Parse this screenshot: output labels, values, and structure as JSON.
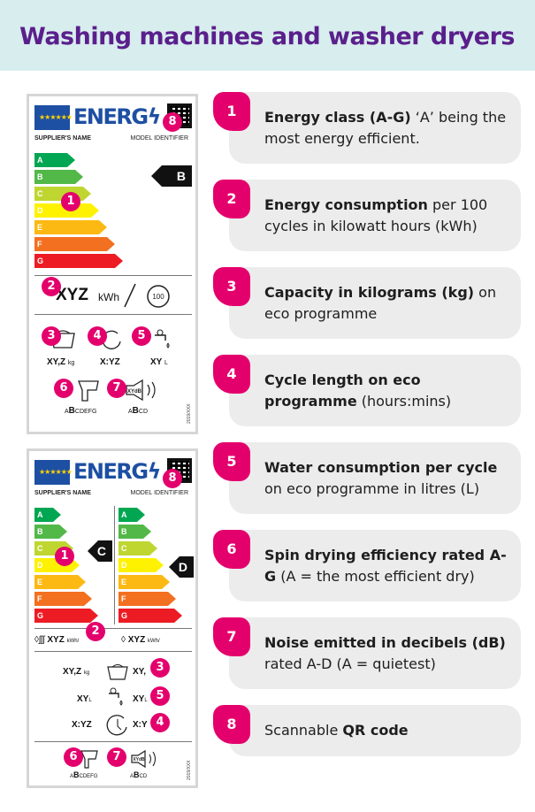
{
  "header": {
    "title": "Washing machines and washer dryers"
  },
  "colors": {
    "brand_purple": "#5a1f8c",
    "accent_pink": "#e4006c",
    "header_bg": "#d8eded",
    "card_bg": "#ececed",
    "eu_blue": "#1d4fa3"
  },
  "energy_scale": [
    {
      "letter": "A",
      "color": "#00a651"
    },
    {
      "letter": "B",
      "color": "#52b848"
    },
    {
      "letter": "C",
      "color": "#bfd630"
    },
    {
      "letter": "D",
      "color": "#fff200"
    },
    {
      "letter": "E",
      "color": "#fdb913"
    },
    {
      "letter": "F",
      "color": "#f37021"
    },
    {
      "letter": "G",
      "color": "#ed1c24"
    }
  ],
  "label_common": {
    "eu_stars": "★★★★★★",
    "energy_title": "ENERG",
    "lightning": "ϟ",
    "supplier": "SUPPLIER'S NAME",
    "model": "MODEL IDENTIFIER",
    "regulation": "2019/XXX"
  },
  "label_washer": {
    "class": "B",
    "consumption_value": "XYZ",
    "consumption_unit": "kWh",
    "cycles": "100",
    "capacity": "XY,Z",
    "capacity_unit": "kg",
    "duration": "X:YZ",
    "water": "XY",
    "water_unit": "L",
    "spin_scale_prefix": "A",
    "spin_scale_highlight": "B",
    "spin_scale_suffix": "CDEFG",
    "noise_scale_prefix": "A",
    "noise_scale_highlight": "B",
    "noise_scale_suffix": "CD",
    "noise_symbol": "XYdB"
  },
  "label_washer_dryer": {
    "class_wash": "C",
    "class_dry": "D",
    "consumption_left": "XYZ",
    "consumption_right": "XYZ",
    "consumption_unit": "kWh/",
    "capacity_left": "XY,Z",
    "capacity_unit": "kg",
    "capacity_right": "XY,",
    "water_left": "XY",
    "water_unit": "L",
    "water_right": "XY",
    "duration_left": "X:YZ",
    "duration_right": "X:Y",
    "spin_scale_prefix": "A",
    "spin_scale_highlight": "B",
    "spin_scale_suffix": "CDEFG",
    "noise_scale_prefix": "A",
    "noise_scale_highlight": "B",
    "noise_scale_suffix": "CD",
    "noise_symbol": "XYdB"
  },
  "markers": [
    "1",
    "2",
    "3",
    "4",
    "5",
    "6",
    "7",
    "8"
  ],
  "cards": [
    {
      "num": "1",
      "bold": "Energy class (A-G)",
      "rest": " ‘A’ being the most energy efficient."
    },
    {
      "num": "2",
      "bold": "Energy consumption",
      "rest": " per 100 cycles in kilowatt hours (kWh)"
    },
    {
      "num": "3",
      "bold": "Capacity in kilograms (kg)",
      "rest": " on eco programme"
    },
    {
      "num": "4",
      "bold": "Cycle length on eco programme",
      "rest": " (hours:mins)"
    },
    {
      "num": "5",
      "bold": "Water consumption per cycle",
      "rest": " on eco programme in litres (L)"
    },
    {
      "num": "6",
      "bold": "Spin drying efficiency rated A-G",
      "rest": " (A = the most efficient dry)"
    },
    {
      "num": "7",
      "bold": "Noise emitted in decibels (dB)",
      "rest": " rated A-D (A = quietest)"
    },
    {
      "num": "8",
      "pre": "Scannable ",
      "bold": "QR code",
      "rest": ""
    }
  ]
}
